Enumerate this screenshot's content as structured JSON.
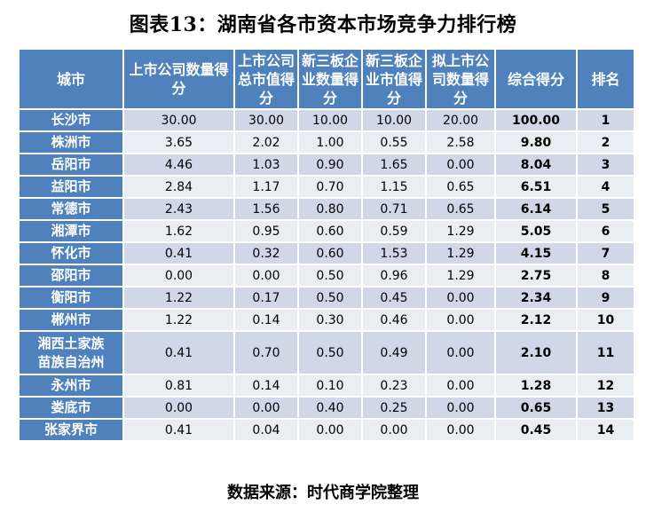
{
  "title": "图表13：湖南省各市资本市场竞争力排行榜",
  "columns": [
    "城市",
    "上市公司数量得分",
    "上市公司总市值得分",
    "新三板企业数量得分",
    "新三板企业市值得分",
    "拟上市公司数量得分",
    "综合得分",
    "排名"
  ],
  "rows": [
    {
      "city": "长沙市",
      "v1": "30.00",
      "v2": "30.00",
      "v3": "10.00",
      "v4": "10.00",
      "v5": "20.00",
      "total": "100.00",
      "rank": "1"
    },
    {
      "city": "株洲市",
      "v1": "3.65",
      "v2": "2.02",
      "v3": "1.00",
      "v4": "0.55",
      "v5": "2.58",
      "total": "9.80",
      "rank": "2"
    },
    {
      "city": "岳阳市",
      "v1": "4.46",
      "v2": "1.03",
      "v3": "0.90",
      "v4": "1.65",
      "v5": "0.00",
      "total": "8.04",
      "rank": "3"
    },
    {
      "city": "益阳市",
      "v1": "2.84",
      "v2": "1.17",
      "v3": "0.70",
      "v4": "1.15",
      "v5": "0.65",
      "total": "6.51",
      "rank": "4"
    },
    {
      "city": "常德市",
      "v1": "2.43",
      "v2": "1.56",
      "v3": "0.80",
      "v4": "0.71",
      "v5": "0.65",
      "total": "6.14",
      "rank": "5"
    },
    {
      "city": "湘潭市",
      "v1": "1.62",
      "v2": "0.95",
      "v3": "0.60",
      "v4": "0.59",
      "v5": "1.29",
      "total": "5.05",
      "rank": "6"
    },
    {
      "city": "怀化市",
      "v1": "0.41",
      "v2": "0.32",
      "v3": "0.60",
      "v4": "1.53",
      "v5": "1.29",
      "total": "4.15",
      "rank": "7"
    },
    {
      "city": "邵阳市",
      "v1": "0.00",
      "v2": "0.00",
      "v3": "0.50",
      "v4": "0.96",
      "v5": "1.29",
      "total": "2.75",
      "rank": "8"
    },
    {
      "city": "衡阳市",
      "v1": "1.22",
      "v2": "0.17",
      "v3": "0.50",
      "v4": "0.45",
      "v5": "0.00",
      "total": "2.34",
      "rank": "9"
    },
    {
      "city": "郴州市",
      "v1": "1.22",
      "v2": "0.14",
      "v3": "0.30",
      "v4": "0.46",
      "v5": "0.00",
      "total": "2.12",
      "rank": "10"
    },
    {
      "city": "湘西土家族\n苗族自治州",
      "v1": "0.41",
      "v2": "0.70",
      "v3": "0.50",
      "v4": "0.49",
      "v5": "0.00",
      "total": "2.10",
      "rank": "11"
    },
    {
      "city": "永州市",
      "v1": "0.81",
      "v2": "0.14",
      "v3": "0.10",
      "v4": "0.23",
      "v5": "0.00",
      "total": "1.28",
      "rank": "12"
    },
    {
      "city": "娄底市",
      "v1": "0.00",
      "v2": "0.00",
      "v3": "0.40",
      "v4": "0.25",
      "v5": "0.00",
      "total": "0.65",
      "rank": "13"
    },
    {
      "city": "张家界市",
      "v1": "0.41",
      "v2": "0.04",
      "v3": "0.00",
      "v4": "0.00",
      "v5": "0.00",
      "total": "0.45",
      "rank": "14"
    }
  ],
  "source": "数据来源：时代商学院整理",
  "colors": {
    "header_bg": "#4f81bd",
    "row_odd_bg": "#d0d8e8",
    "row_even_bg": "#e9edf4"
  }
}
